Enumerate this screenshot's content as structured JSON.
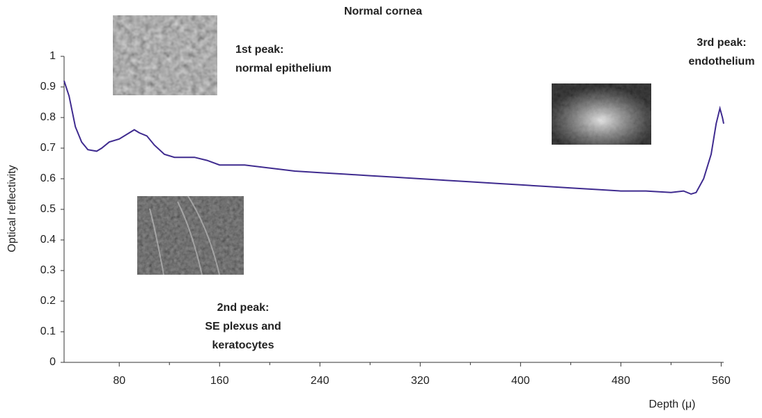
{
  "chart_data": {
    "type": "line",
    "title": "Normal cornea",
    "x_label": "Depth (μ)",
    "y_label": "Optical reflectivity",
    "annotations": [
      [
        "1st peak:",
        "normal epithelium"
      ],
      [
        "2nd peak:",
        "SE plexus and",
        "keratocytes"
      ],
      [
        "3rd peak:",
        "endothelium"
      ]
    ],
    "x": [
      36,
      40,
      45,
      50,
      55,
      62,
      66,
      72,
      80,
      88,
      92,
      96,
      102,
      108,
      116,
      124,
      140,
      150,
      160,
      180,
      200,
      220,
      240,
      260,
      280,
      300,
      320,
      340,
      360,
      380,
      400,
      420,
      440,
      460,
      480,
      500,
      520,
      530,
      536,
      540,
      546,
      552,
      556,
      559,
      561,
      562
    ],
    "series": [
      {
        "name": "Normal cornea",
        "color": "#3f2b8f",
        "values": [
          0.92,
          0.87,
          0.77,
          0.72,
          0.695,
          0.69,
          0.7,
          0.72,
          0.73,
          0.75,
          0.76,
          0.75,
          0.74,
          0.71,
          0.68,
          0.67,
          0.67,
          0.66,
          0.645,
          0.645,
          0.635,
          0.625,
          0.62,
          0.615,
          0.61,
          0.605,
          0.6,
          0.595,
          0.59,
          0.585,
          0.58,
          0.575,
          0.57,
          0.565,
          0.56,
          0.56,
          0.555,
          0.56,
          0.55,
          0.555,
          0.6,
          0.68,
          0.78,
          0.83,
          0.8,
          0.78
        ]
      }
    ],
    "xlim": [
      36,
      562
    ],
    "ylim": [
      0,
      1
    ],
    "xticks": [
      80,
      160,
      240,
      320,
      400,
      480,
      560
    ],
    "xminorticks": [
      120,
      200,
      280,
      360,
      440,
      520
    ],
    "yticks": [
      0,
      0.1,
      0.2,
      0.3,
      0.4,
      0.5,
      0.6,
      0.7,
      0.8,
      0.9,
      1
    ]
  }
}
